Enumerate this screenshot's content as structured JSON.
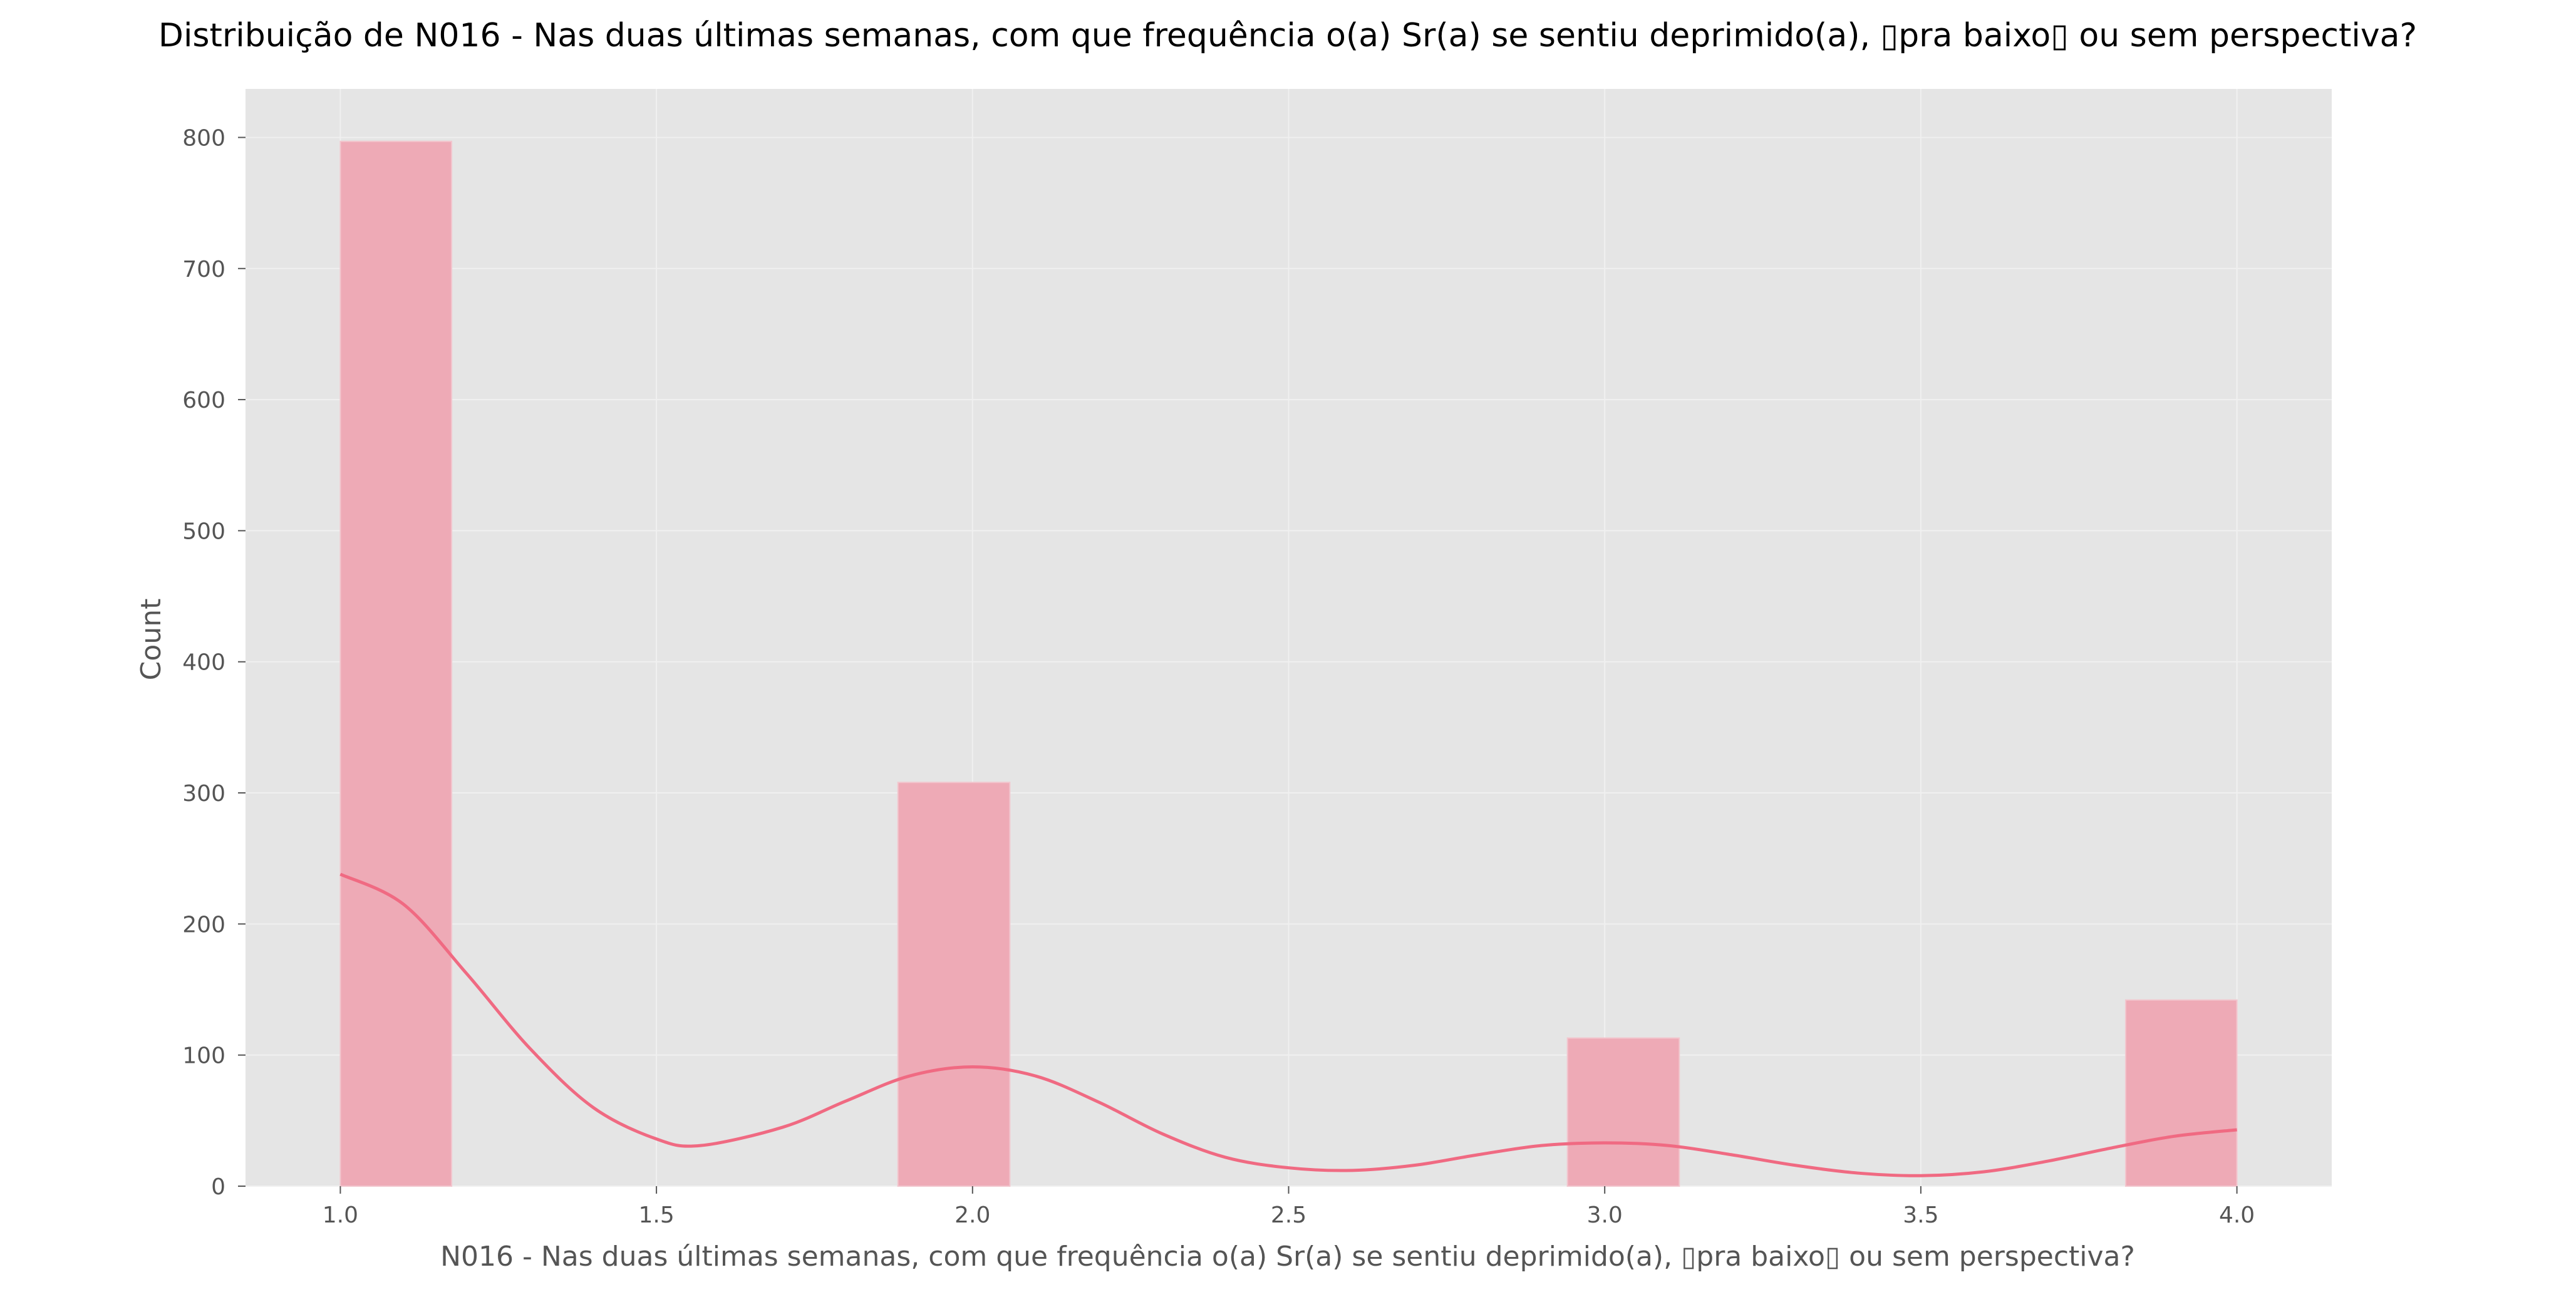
{
  "chart_data": {
    "type": "bar",
    "title": "Distribuição de N016 - Nas duas últimas semanas, com que frequência o(a) Sr(a) se sentiu deprimido(a), ▯pra baixo▯ ou sem perspectiva?",
    "xlabel": "N016 - Nas duas últimas semanas, com que frequência o(a) Sr(a) se sentiu deprimido(a), ▯pra baixo▯ ou sem perspectiva?",
    "ylabel": "Count",
    "xlim": [
      0.85,
      4.15
    ],
    "ylim": [
      0,
      837
    ],
    "grid": true,
    "xticks": [
      1.0,
      1.5,
      2.0,
      2.5,
      3.0,
      3.5,
      4.0
    ],
    "xtick_labels": [
      "1.0",
      "1.5",
      "2.0",
      "2.5",
      "3.0",
      "3.5",
      "4.0"
    ],
    "yticks": [
      0,
      100,
      200,
      300,
      400,
      500,
      600,
      700,
      800
    ],
    "ytick_labels": [
      "0",
      "100",
      "200",
      "300",
      "400",
      "500",
      "600",
      "700",
      "800"
    ],
    "bins": [
      {
        "x0": 1.0,
        "x1": 1.176,
        "count": 797
      },
      {
        "x0": 1.882,
        "x1": 2.059,
        "count": 308
      },
      {
        "x0": 2.941,
        "x1": 3.118,
        "count": 113
      },
      {
        "x0": 3.824,
        "x1": 4.0,
        "count": 142
      }
    ],
    "kde": {
      "x": [
        1.0,
        1.1,
        1.2,
        1.3,
        1.4,
        1.5,
        1.57,
        1.7,
        1.8,
        1.9,
        2.0,
        2.1,
        2.2,
        2.3,
        2.4,
        2.5,
        2.6,
        2.7,
        2.8,
        2.9,
        3.0,
        3.1,
        3.2,
        3.3,
        3.4,
        3.5,
        3.6,
        3.7,
        3.8,
        3.9,
        4.0
      ],
      "y": [
        238,
        215,
        162,
        105,
        60,
        36,
        31,
        45,
        65,
        84,
        91,
        84,
        64,
        40,
        22,
        14,
        12,
        16,
        24,
        31,
        33,
        31,
        24,
        16,
        10,
        8,
        11,
        19,
        29,
        38,
        43
      ]
    },
    "colors": {
      "bar_fill": "#eeaab6",
      "bar_edge": "#f2c6ce",
      "kde_line": "#f06a82",
      "plot_background": "#e5e5e5",
      "grid": "#f0f0f0"
    }
  }
}
